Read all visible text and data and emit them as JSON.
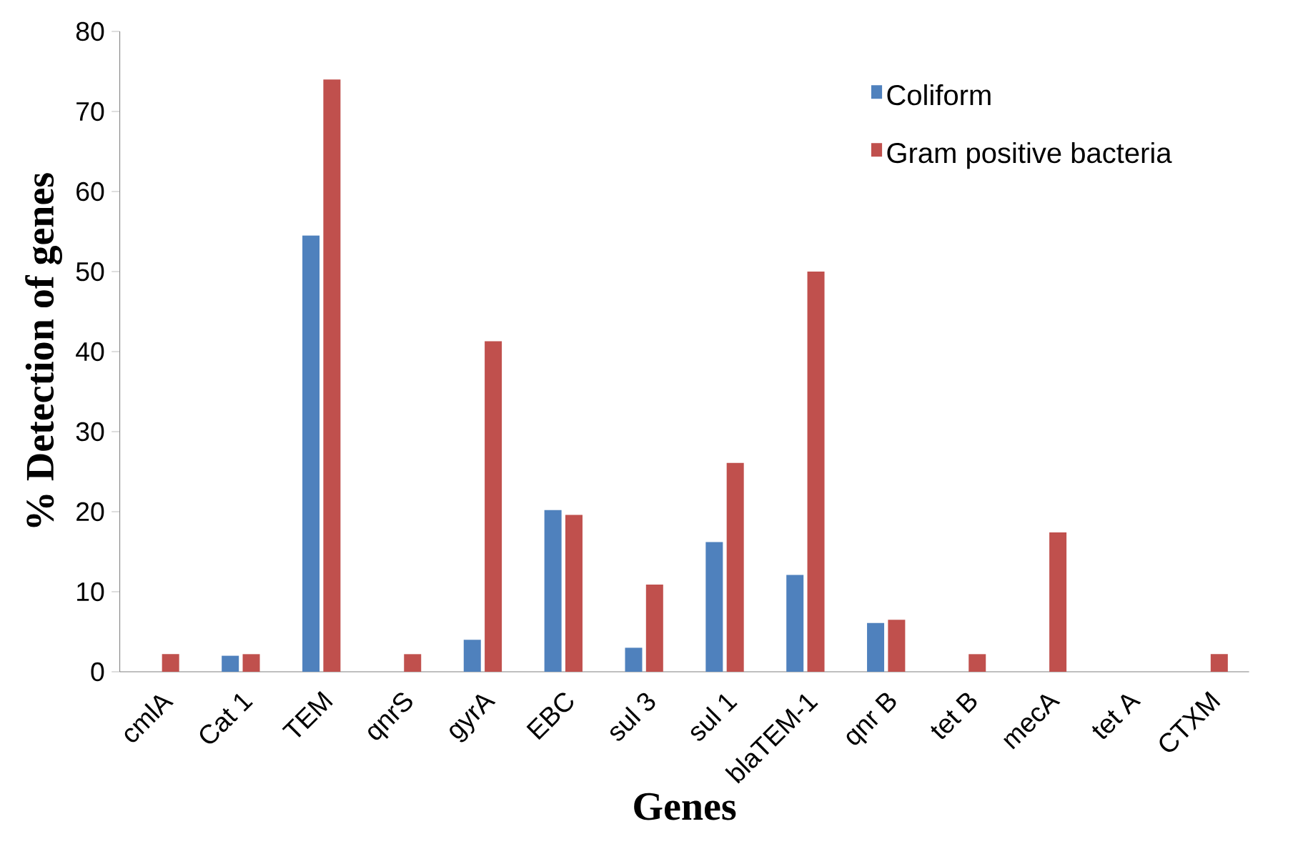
{
  "chart_data": {
    "type": "bar",
    "xlabel": "Genes",
    "ylabel": "% Detection of genes",
    "categories": [
      "cmlA",
      "Cat 1",
      "TEM",
      "qnrS",
      "gyrA",
      "EBC",
      "sul 3",
      "sul 1",
      "blaTEM-1",
      "qnr B",
      "tet B",
      "mecA",
      "tet A",
      "CTXM"
    ],
    "series": [
      {
        "name": "Coliform",
        "color": "#4f81bd",
        "values": [
          0,
          2,
          54.5,
          0,
          4,
          20.2,
          3,
          16.2,
          12.1,
          6.1,
          0,
          0,
          0,
          0
        ]
      },
      {
        "name": "Gram positive bacteria",
        "color": "#c0504d",
        "values": [
          2.2,
          2.2,
          74,
          2.2,
          41.3,
          19.6,
          10.9,
          26.1,
          50,
          6.5,
          2.2,
          17.4,
          0,
          2.2
        ]
      }
    ],
    "ylim": [
      0,
      80
    ],
    "yticks": [
      0,
      10,
      20,
      30,
      40,
      50,
      60,
      70,
      80
    ],
    "grid": false,
    "legend": "top right"
  }
}
